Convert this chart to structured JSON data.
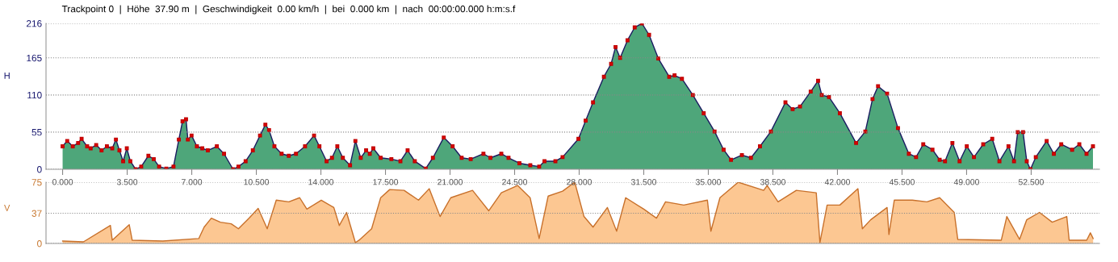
{
  "chart_data": [
    {
      "type": "area",
      "title": "Trackpoint 0  |  Höhe  37.90 m  |  Geschwindigkeit  0.00 km/h  |  bei  0.000 km  |  nach  00:00:00.000 h:m:s.f",
      "ylabel": "H",
      "color": "#4ea67a",
      "marker": "square",
      "grid": "y",
      "x": [
        0,
        0.25,
        0.55,
        0.84,
        1.03,
        1.33,
        1.52,
        1.82,
        2.11,
        2.4,
        2.69,
        2.89,
        3.08,
        3.28,
        3.48,
        3.67,
        3.96,
        4.26,
        4.65,
        4.94,
        5.23,
        5.62,
        6.01,
        6.3,
        6.5,
        6.69,
        6.79,
        6.99,
        7.28,
        7.57,
        7.87,
        8.36,
        8.75,
        9.24,
        9.53,
        9.92,
        10.31,
        10.7,
        10.99,
        11.19,
        11.48,
        11.87,
        12.26,
        12.65,
        13.14,
        13.63,
        13.92,
        14.31,
        14.6,
        14.89,
        15.19,
        15.58,
        15.87,
        16.16,
        16.45,
        16.65,
        16.84,
        17.24,
        17.82,
        18.31,
        18.7,
        19.09,
        19.68,
        20.07,
        20.66,
        21.14,
        21.63,
        22.12,
        22.81,
        23.19,
        23.78,
        24.17,
        24.76,
        25.35,
        25.83,
        26.12,
        26.71,
        27.1,
        27.96,
        28.35,
        28.75,
        29.34,
        29.73,
        29.97,
        30.22,
        30.62,
        31.01,
        31.4,
        31.79,
        32.29,
        32.88,
        33.17,
        33.57,
        34.16,
        34.75,
        35.34,
        35.83,
        36.23,
        36.82,
        37.31,
        37.8,
        38.39,
        39.18,
        39.57,
        39.97,
        40.55,
        40.95,
        41.15,
        41.54,
        42.13,
        43.01,
        43.51,
        43.9,
        44.2,
        44.69,
        45.28,
        45.87,
        46.26,
        46.65,
        47.15,
        47.54,
        47.83,
        48.23,
        48.62,
        49.01,
        49.4,
        49.9,
        50.39,
        50.78,
        51.27,
        51.57,
        51.77,
        52.06,
        52.26,
        52.46,
        52.75,
        53.34,
        53.73,
        54.13,
        54.72,
        55.11,
        55.5,
        55.85
      ],
      "values": [
        34,
        42,
        34,
        39,
        45,
        34,
        31,
        36,
        28,
        34,
        31,
        44,
        28,
        12,
        31,
        12,
        0,
        4,
        20,
        15,
        4,
        1,
        4,
        44,
        71,
        74,
        44,
        50,
        34,
        31,
        28,
        34,
        23,
        0,
        4,
        12,
        28,
        50,
        66,
        58,
        34,
        23,
        20,
        23,
        34,
        50,
        34,
        12,
        17,
        34,
        17,
        6,
        42,
        17,
        28,
        23,
        31,
        17,
        15,
        12,
        28,
        12,
        1,
        17,
        47,
        34,
        17,
        15,
        23,
        17,
        23,
        17,
        9,
        6,
        4,
        12,
        12,
        18,
        45,
        72,
        99,
        137,
        156,
        181,
        165,
        191,
        210,
        216,
        199,
        164,
        137,
        139,
        134,
        110,
        83,
        56,
        29,
        14,
        21,
        17,
        34,
        56,
        99,
        89,
        93,
        115,
        131,
        110,
        107,
        83,
        39,
        56,
        104,
        123,
        112,
        61,
        23,
        18,
        37,
        29,
        14,
        12,
        39,
        12,
        34,
        18,
        37,
        45,
        12,
        34,
        12,
        55,
        55,
        12,
        0,
        18,
        42,
        23,
        37,
        29,
        37,
        23,
        34
      ],
      "xlim": [
        -0.9,
        56.2
      ],
      "ylim": [
        0,
        216
      ],
      "yticks": [
        0,
        55,
        110,
        165,
        216
      ],
      "xticks": [
        {
          "value": 0,
          "label": "0.000"
        },
        {
          "value": 3.5,
          "label": "3.500"
        },
        {
          "value": 7,
          "label": "7.000"
        },
        {
          "value": 10.5,
          "label": "10.500"
        },
        {
          "value": 14,
          "label": "14.000"
        },
        {
          "value": 17.5,
          "label": "17.500"
        },
        {
          "value": 21,
          "label": "21.000"
        },
        {
          "value": 24.5,
          "label": "24.500"
        },
        {
          "value": 28,
          "label": "28.000"
        },
        {
          "value": 31.5,
          "label": "31.500"
        },
        {
          "value": 35,
          "label": "35.000"
        },
        {
          "value": 38.5,
          "label": "38.500"
        },
        {
          "value": 42,
          "label": "42.000"
        },
        {
          "value": 45.5,
          "label": "45.500"
        },
        {
          "value": 49,
          "label": "49.000"
        },
        {
          "value": 52.5,
          "label": "52.500"
        }
      ]
    },
    {
      "type": "area",
      "ylabel": "V",
      "color": "#fcc792",
      "grid": "y",
      "tick_labels": "y",
      "x": [
        0,
        1.13,
        2.59,
        2.69,
        3.61,
        3.77,
        5.43,
        7.38,
        7.67,
        8.06,
        8.55,
        9.14,
        9.53,
        10.11,
        10.6,
        11.09,
        11.58,
        12.26,
        12.85,
        13.24,
        14.02,
        14.7,
        15.0,
        15.39,
        15.87,
        16.07,
        16.75,
        17.24,
        17.73,
        18.51,
        19.29,
        19.87,
        20.46,
        21.04,
        22.22,
        23.1,
        23.78,
        24.66,
        25.34,
        25.83,
        26.32,
        27.1,
        27.76,
        28.26,
        28.75,
        29.53,
        30.03,
        30.52,
        31.5,
        32.19,
        32.68,
        33.67,
        34.95,
        35.14,
        35.63,
        36.62,
        38.0,
        38.19,
        38.78,
        39.77,
        40.85,
        41.05,
        41.44,
        42.13,
        43.11,
        43.35,
        43.8,
        44.69,
        44.79,
        45.08,
        46.06,
        46.85,
        47.54,
        48.33,
        48.52,
        50.88,
        51.18,
        51.87,
        52.26,
        52.95,
        53.64,
        54.43,
        54.56,
        55.51,
        55.71,
        55.86
      ],
      "values": [
        3,
        2,
        22,
        4,
        23,
        4,
        3,
        6,
        20,
        31,
        26,
        24,
        18,
        31,
        43,
        18,
        53,
        51,
        56,
        42,
        53,
        44,
        22,
        38,
        1,
        4,
        18,
        56,
        66,
        65,
        53,
        67,
        33,
        56,
        65,
        40,
        62,
        71,
        56,
        6,
        58,
        64,
        75,
        33,
        20,
        44,
        15,
        56,
        42,
        31,
        51,
        47,
        53,
        15,
        56,
        75,
        65,
        71,
        51,
        65,
        62,
        1,
        47,
        47,
        67,
        18,
        29,
        44,
        11,
        53,
        53,
        51,
        56,
        38,
        5,
        4,
        33,
        5,
        29,
        38,
        26,
        33,
        4,
        4,
        13,
        6
      ],
      "xlim": [
        -0.9,
        56.2
      ],
      "ylim": [
        0,
        75
      ],
      "yticks": [
        0,
        37,
        75
      ]
    }
  ]
}
